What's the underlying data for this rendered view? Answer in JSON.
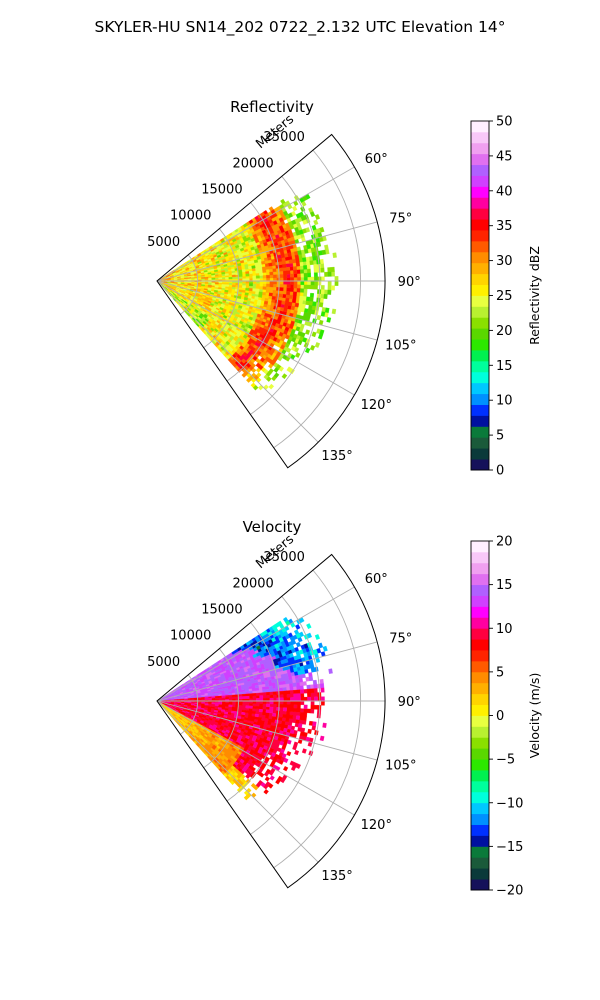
{
  "figure": {
    "title": "SKYLER-HU  SN14_202  0722_2.132 UTC Elevation 14°"
  },
  "colors": {
    "reflectivity_cmap": [
      "#15115a",
      "#0a3a3a",
      "#1a5a3a",
      "#0a7a3a",
      "#0010a0",
      "#0030ff",
      "#0090ff",
      "#00c8ff",
      "#00ffdc",
      "#00ff9c",
      "#00f050",
      "#2ce800",
      "#5ad800",
      "#8ae000",
      "#b8f030",
      "#e8ff40",
      "#fff000",
      "#ffd400",
      "#ffb000",
      "#ff8c00",
      "#ff5a00",
      "#ff2400",
      "#ff0000",
      "#ff0040",
      "#ff00a0",
      "#ff00ff",
      "#d040ff",
      "#b060ff",
      "#e070f0",
      "#f0a0f0",
      "#f8c8f8",
      "#fff0ff"
    ],
    "velocity_cmap": [
      "#15115a",
      "#0a3a3a",
      "#1a5a3a",
      "#0a7a3a",
      "#0010a0",
      "#0030ff",
      "#0090ff",
      "#00c8ff",
      "#00ffdc",
      "#00ff9c",
      "#00f050",
      "#2ce800",
      "#5ad800",
      "#8ae000",
      "#b8f030",
      "#e8ff40",
      "#fff000",
      "#ffd400",
      "#ffb000",
      "#ff8c00",
      "#ff5a00",
      "#ff2400",
      "#ff0000",
      "#ff0040",
      "#ff00a0",
      "#ff00ff",
      "#d040ff",
      "#b060ff",
      "#e070f0",
      "#f0a0f0",
      "#f8c8f8",
      "#fff0ff"
    ]
  },
  "chart_data": [
    {
      "type": "heatmap",
      "projection": "polar-sector",
      "title": "Reflectivity",
      "radial_axis_label": "Meters",
      "radial_ticks": [
        5000,
        10000,
        15000,
        20000,
        25000
      ],
      "radial_tick_labels": [
        "5000",
        "10000",
        "15000",
        "20000",
        "25000"
      ],
      "radial_max": 28000,
      "azimuth_range_deg": [
        50,
        145
      ],
      "azimuth_ticks": [
        60,
        75,
        90,
        105,
        120,
        135
      ],
      "azimuth_tick_labels": [
        "60°",
        "75°",
        "90°",
        "105°",
        "120°",
        "135°"
      ],
      "grid": true,
      "colorbar": {
        "label": "Reflectivity dBZ",
        "range": [
          0,
          50
        ],
        "ticks": [
          0,
          5,
          10,
          15,
          20,
          25,
          30,
          35,
          40,
          45,
          50
        ],
        "tick_labels": [
          "0",
          "5",
          "10",
          "15",
          "20",
          "25",
          "30",
          "35",
          "40",
          "45",
          "50"
        ]
      },
      "field_description": {
        "data_extent_m": [
          0,
          22000
        ],
        "data_azimuth_deg": [
          57,
          138
        ],
        "inner_values_dbz": [
          22,
          30
        ],
        "ring_peak_dbz": 35,
        "ring_range_m": [
          14000,
          17000
        ],
        "outer_values_dbz": [
          18,
          24
        ]
      }
    },
    {
      "type": "heatmap",
      "projection": "polar-sector",
      "title": "Velocity",
      "radial_axis_label": "Meters",
      "radial_ticks": [
        5000,
        10000,
        15000,
        20000,
        25000
      ],
      "radial_tick_labels": [
        "5000",
        "10000",
        "15000",
        "20000",
        "25000"
      ],
      "radial_max": 28000,
      "azimuth_range_deg": [
        50,
        145
      ],
      "azimuth_ticks": [
        60,
        75,
        90,
        105,
        120,
        135
      ],
      "azimuth_tick_labels": [
        "60°",
        "75°",
        "90°",
        "105°",
        "120°",
        "135°"
      ],
      "grid": true,
      "colorbar": {
        "label": "Velocity (m/s)",
        "range": [
          -20,
          20
        ],
        "ticks": [
          -20,
          -15,
          -10,
          -5,
          0,
          5,
          10,
          15,
          20
        ],
        "tick_labels": [
          "−20",
          "−15",
          "−10",
          "−5",
          "0",
          "5",
          "10",
          "15",
          "20"
        ]
      },
      "field_description": {
        "data_extent_m": [
          0,
          22000
        ],
        "data_azimuth_deg": [
          57,
          138
        ],
        "north_sector_ms": [
          12,
          16
        ],
        "far_north_sector_ms": [
          -14,
          -10
        ],
        "south_sector_ms": [
          8,
          12
        ],
        "near_south_ms": [
          0,
          4
        ]
      }
    }
  ]
}
